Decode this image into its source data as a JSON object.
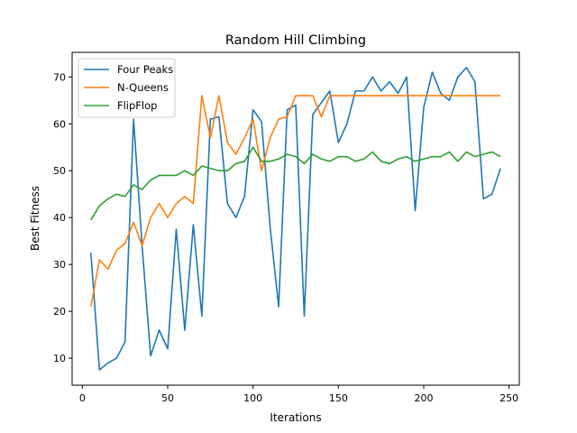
{
  "chart_data": {
    "type": "line",
    "title": "Random Hill Climbing",
    "xlabel": "Iterations",
    "ylabel": "Best Fitness",
    "xlim": [
      -6,
      256
    ],
    "ylim": [
      4.25,
      75.25
    ],
    "xticks": [
      0,
      50,
      100,
      150,
      200,
      250
    ],
    "yticks": [
      10,
      20,
      30,
      40,
      50,
      60,
      70
    ],
    "grid": false,
    "legend_position": "top-left",
    "x": [
      5,
      10,
      15,
      20,
      25,
      30,
      35,
      40,
      45,
      50,
      55,
      60,
      65,
      70,
      75,
      80,
      85,
      90,
      95,
      100,
      105,
      110,
      115,
      120,
      125,
      130,
      135,
      140,
      145,
      150,
      155,
      160,
      165,
      170,
      175,
      180,
      185,
      190,
      195,
      200,
      205,
      210,
      215,
      220,
      225,
      230,
      235,
      240,
      245
    ],
    "series": [
      {
        "name": "Four Peaks",
        "color": "#1f77b4",
        "values": [
          32.5,
          7.5,
          9,
          10,
          13.5,
          61,
          34,
          10.5,
          16,
          12,
          37.5,
          16,
          38.5,
          19,
          61,
          61.5,
          43,
          40,
          44.5,
          63,
          60.5,
          38,
          21,
          63,
          64,
          19,
          62,
          64.5,
          67,
          56,
          60,
          67,
          67,
          70,
          67,
          69,
          66.5,
          70,
          41.5,
          63.5,
          71,
          66.5,
          65,
          70,
          72,
          69,
          44,
          45,
          50.5
        ]
      },
      {
        "name": "N-Queens",
        "color": "#ff7f0e",
        "values": [
          21,
          31,
          29,
          33,
          34.5,
          39,
          34,
          40,
          43,
          40,
          43,
          44.5,
          43,
          66,
          57,
          66,
          56,
          53.5,
          57,
          61,
          50,
          57,
          61,
          61.5,
          66,
          66,
          66,
          61.5,
          66,
          66,
          66,
          66,
          66,
          66,
          66,
          66,
          66,
          66,
          66,
          66,
          66,
          66,
          66,
          66,
          66,
          66,
          66,
          66,
          66
        ]
      },
      {
        "name": "FlipFlop",
        "color": "#2ca02c",
        "values": [
          39.5,
          42.5,
          44,
          45,
          44.5,
          47,
          46,
          48,
          49,
          49,
          49,
          50,
          49,
          51,
          50.5,
          50,
          50,
          51.5,
          52,
          55,
          52,
          52,
          52.5,
          53.5,
          53,
          51.5,
          53.5,
          52.5,
          52,
          53,
          53,
          52,
          52.5,
          54,
          52,
          51.5,
          52.5,
          53,
          52,
          52.5,
          53,
          53,
          54,
          52,
          54,
          53,
          53.5,
          54,
          53
        ]
      }
    ]
  }
}
